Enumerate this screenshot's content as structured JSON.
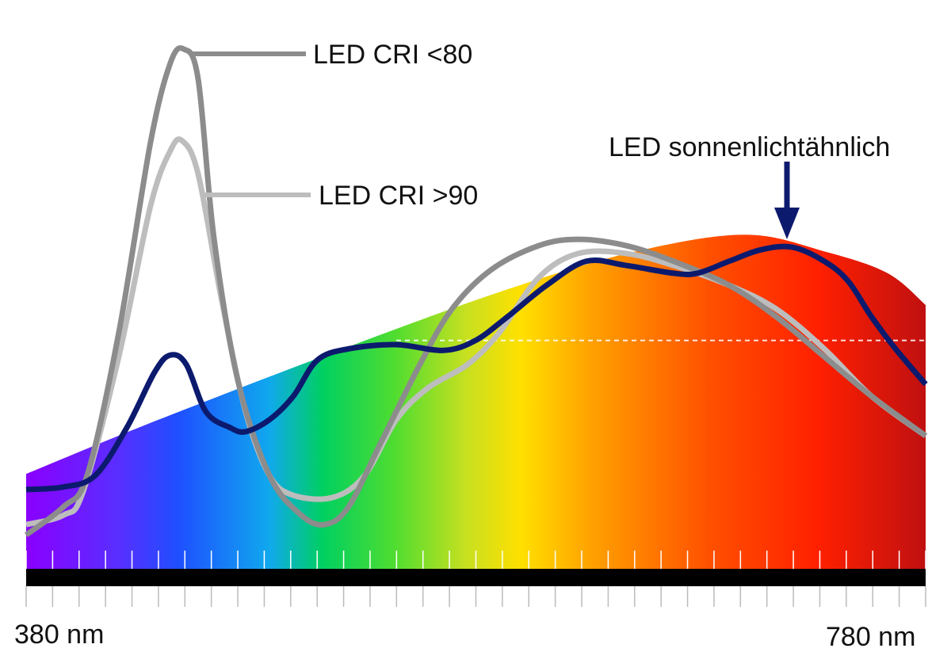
{
  "chart_data": {
    "type": "line",
    "title": "",
    "xlabel": "",
    "ylabel": "",
    "x_unit": "nm",
    "xlim": [
      380,
      780
    ],
    "ylim": [
      0,
      100
    ],
    "x_tick_labels": [
      "380 nm",
      "780 nm"
    ],
    "grid": false,
    "legend": "inline labels with leader lines",
    "spectrum_area": {
      "type": "area",
      "fill": "visible spectrum gradient (violet to red)",
      "x": [
        380,
        438.9,
        523.4,
        593.9,
        650.3,
        699.7,
        735.6,
        763.1,
        780
      ],
      "y": [
        18.2,
        28.6,
        42.6,
        53.6,
        60.8,
        64.1,
        60.8,
        56.7,
        50.6
      ],
      "reference_dashed_line_y": 43.8
    },
    "series": [
      {
        "name": "LED CRI <80",
        "color": "#8c8c8c",
        "x": [
          380,
          396.6,
          407.1,
          421.2,
          435.3,
          444.1,
          450.1,
          456.5,
          463.5,
          474.1,
          488.2,
          502.3,
          512.9,
          523.4,
          537.5,
          555.1,
          569.3,
          586.9,
          608.0,
          625.6,
          646.8,
          667.9,
          692.6,
          713.7,
          734.9,
          756.0,
          780
        ],
        "y": [
          6.5,
          11.9,
          17.9,
          45.3,
          81.8,
          97.0,
          99.7,
          93.9,
          63.5,
          36.2,
          17.9,
          10.3,
          8.5,
          11.9,
          24.0,
          39.2,
          49.8,
          57.4,
          62.0,
          63.2,
          62.0,
          59.0,
          54.4,
          48.3,
          40.7,
          33.1,
          25.5
        ]
      },
      {
        "name": "LED CRI >90",
        "color": "#bdbdbd",
        "x": [
          380,
          396.6,
          405.4,
          421.2,
          435.3,
          444.1,
          449.4,
          456.5,
          467.0,
          477.6,
          488.2,
          498.8,
          516.4,
          530.5,
          544.6,
          558.7,
          576.3,
          590.4,
          608.0,
          625.6,
          646.8,
          667.9,
          692.6,
          713.7,
          734.9,
          756.0,
          780
        ],
        "y": [
          8.5,
          10.3,
          14.9,
          40.7,
          69.6,
          80.2,
          82.1,
          75.7,
          51.4,
          30.1,
          17.9,
          14.1,
          13.7,
          17.9,
          28.6,
          34.7,
          39.2,
          45.3,
          55.9,
          60.5,
          60.5,
          58.2,
          54.4,
          49.8,
          42.2,
          33.1,
          25.5
        ]
      },
      {
        "name": "LED sonnenlichtähnlich",
        "color": "#0c1a6e",
        "x": [
          380,
          396.6,
          410.7,
          424.8,
          437.1,
          444.1,
          451.2,
          460.0,
          470.6,
          477.6,
          488.2,
          498.8,
          509.4,
          523.4,
          544.6,
          565.7,
          579.8,
          593.9,
          611.5,
          629.1,
          646.8,
          667.9,
          678.5,
          692.6,
          706.7,
          720.8,
          734.9,
          745.5,
          756.0,
          766.6,
          780
        ],
        "y": [
          15.2,
          15.7,
          17.9,
          27.1,
          37.7,
          41.0,
          39.2,
          30.1,
          27.1,
          26.3,
          28.6,
          33.1,
          40.0,
          42.2,
          43.0,
          41.9,
          43.8,
          48.3,
          54.4,
          59.0,
          58.2,
          56.7,
          56.7,
          59.0,
          61.2,
          61.7,
          59.0,
          55.2,
          48.3,
          42.2,
          35.4
        ]
      }
    ],
    "annotations": [
      "LED CRI <80",
      "LED CRI >90",
      "LED sonnenlichtähnlich"
    ]
  }
}
